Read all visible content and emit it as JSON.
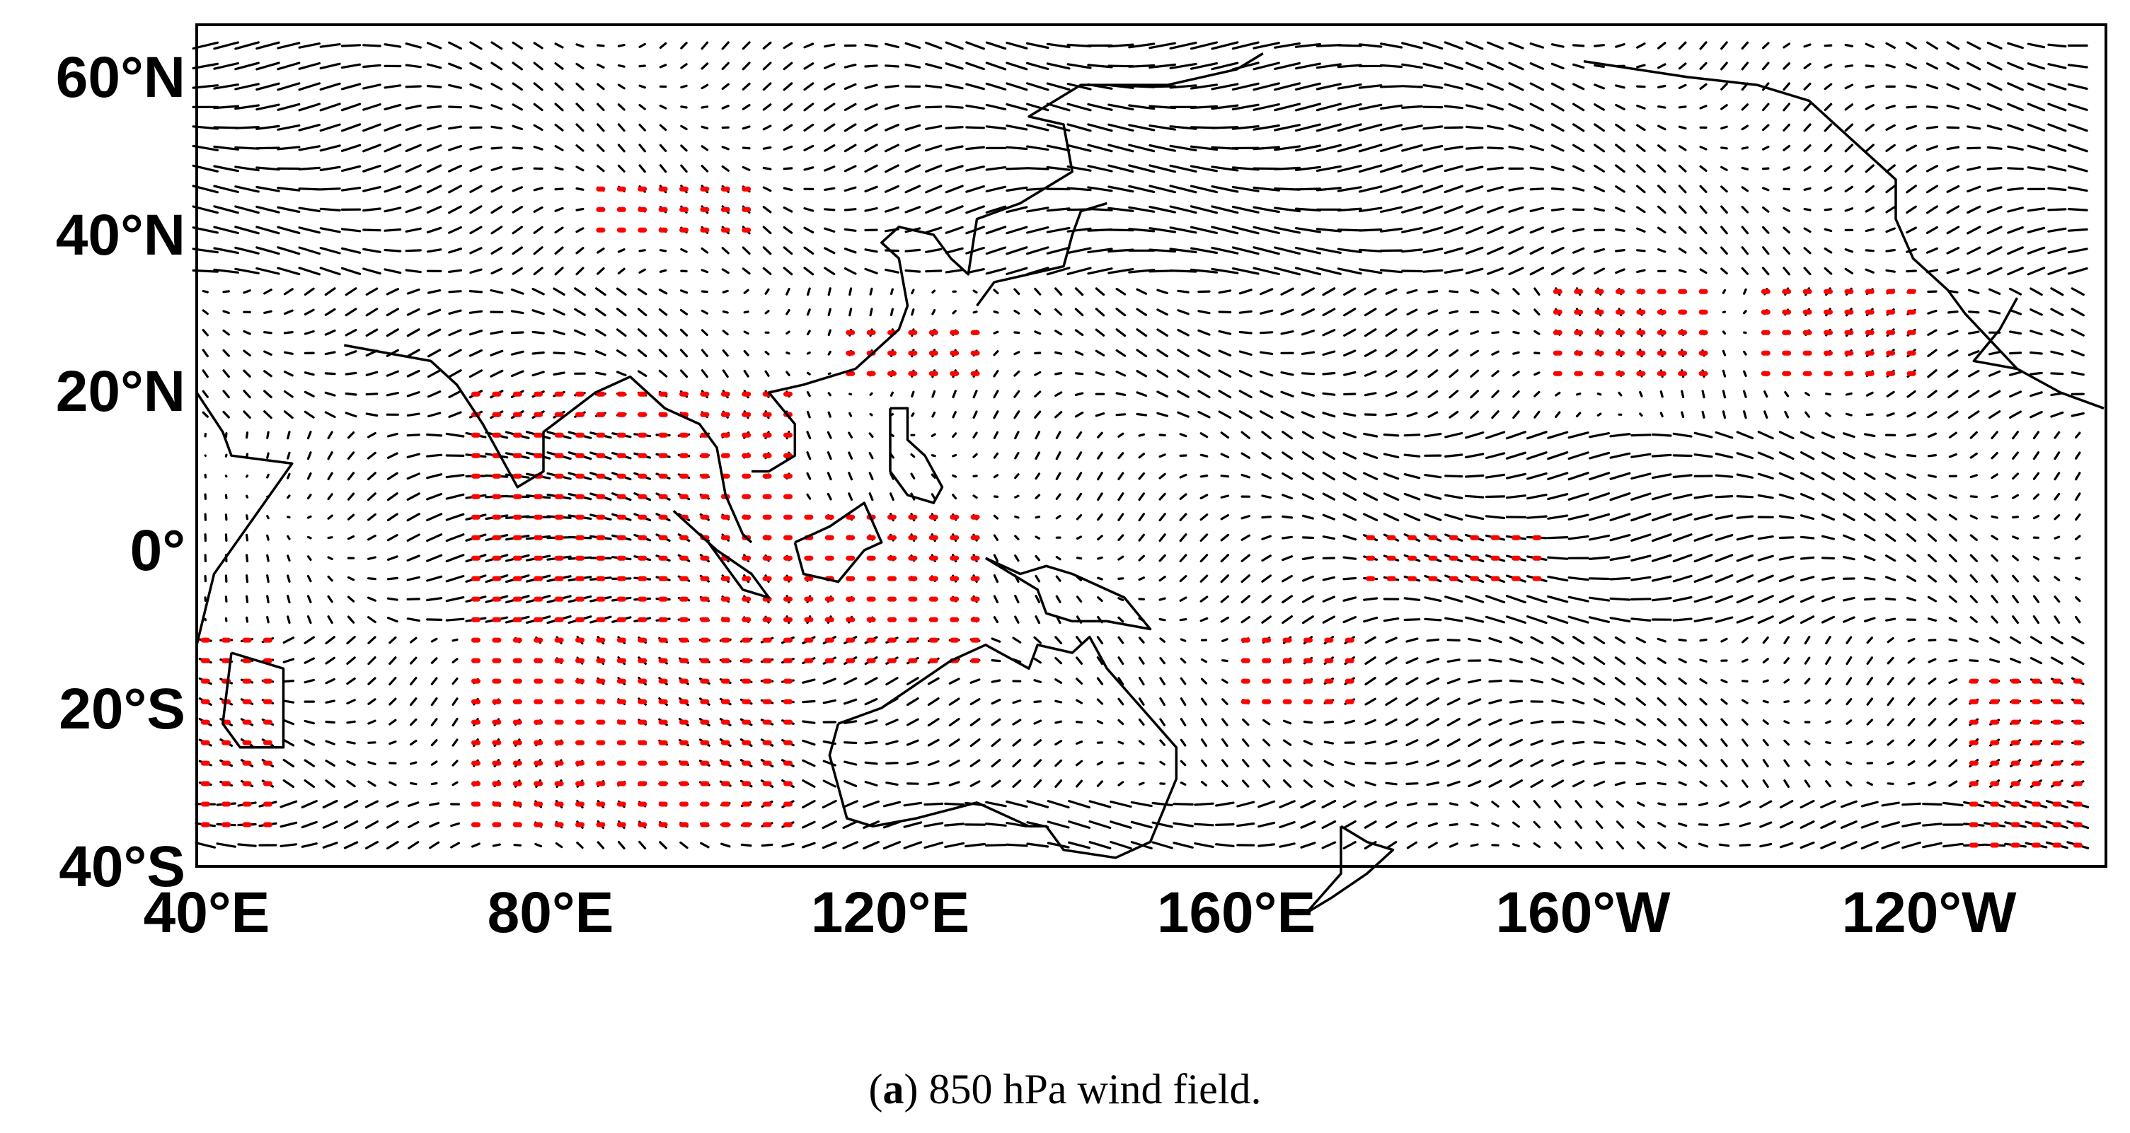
{
  "axes": {
    "y_labels": [
      "60°N",
      "40°N",
      "20°N",
      "0°",
      "20°S",
      "40°S"
    ],
    "x_labels": [
      "40°E",
      "80°E",
      "120°E",
      "160°E",
      "160°W",
      "120°W"
    ]
  },
  "caption": {
    "parts": [
      "(",
      "a",
      ") 850 hPa wind field."
    ]
  }
}
